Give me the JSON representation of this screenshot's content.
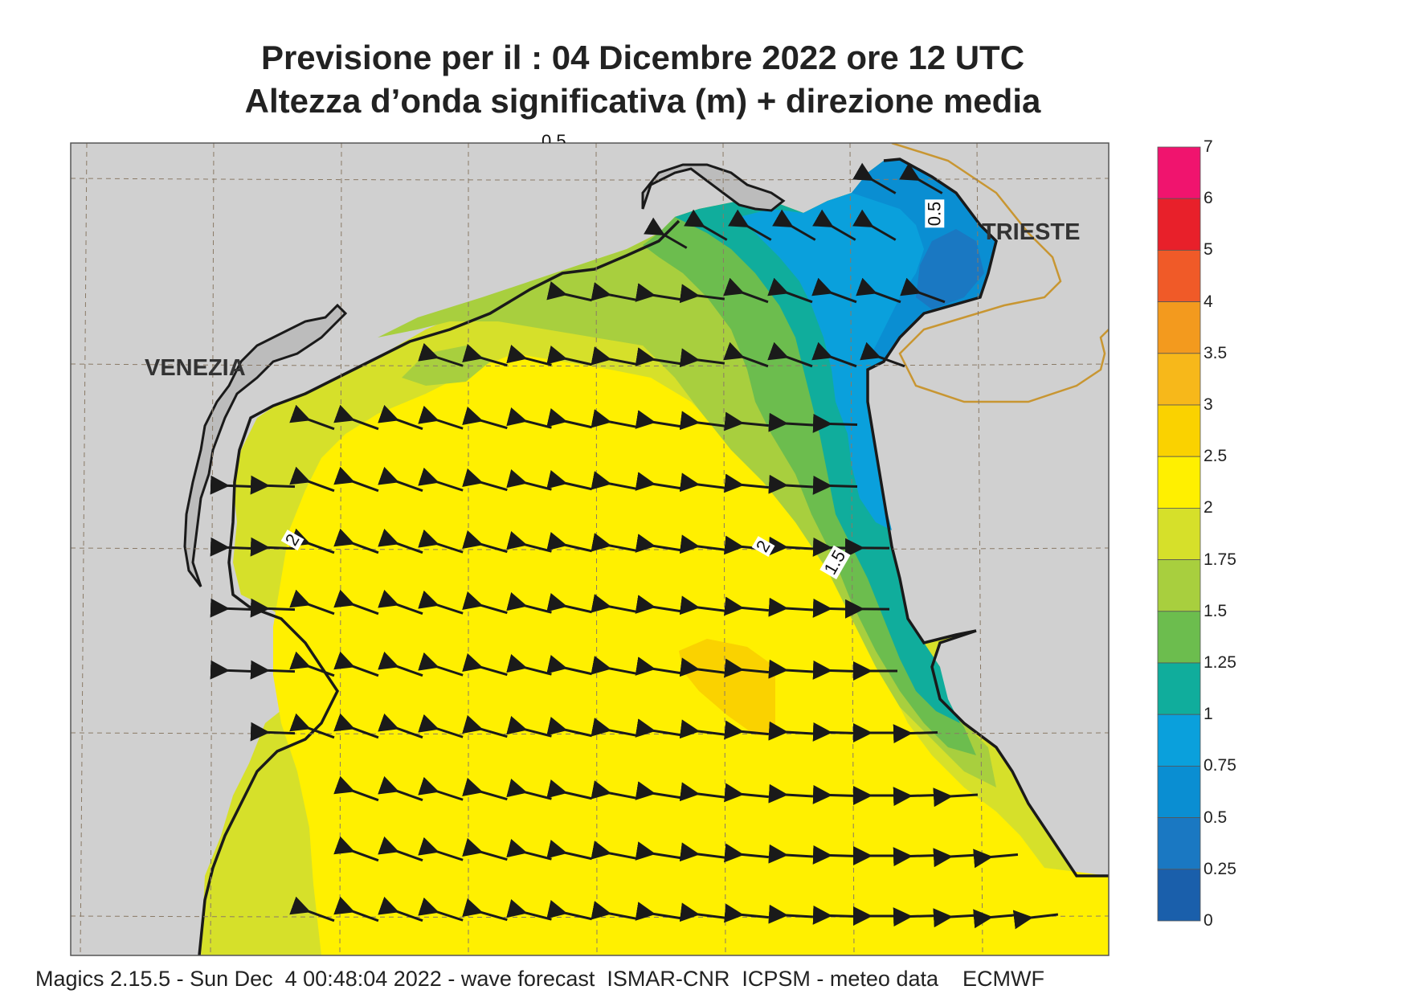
{
  "title": {
    "line1": "Previsione per il  :  04 Dicembre  2022   ore 12 UTC",
    "line2": "Altezza d’onda significativa (m) + direzione media"
  },
  "cities": [
    {
      "name": "VENEZIA"
    },
    {
      "name": "TRIESTE"
    }
  ],
  "contour_labels": [
    "2",
    "2",
    "1.5",
    "0.5",
    "0.5"
  ],
  "colorbar": {
    "labels": [
      "7",
      "6",
      "5",
      "4",
      "3.5",
      "3",
      "2.5",
      "2",
      "1.75",
      "1.5",
      "1.25",
      "1",
      "0.75",
      "0.5",
      "0.25",
      "0"
    ],
    "colors": [
      "#f0146e",
      "#e8202a",
      "#f05a28",
      "#f39a1e",
      "#f7b81a",
      "#fad200",
      "#fff000",
      "#d6e02a",
      "#a8cf3e",
      "#6cbd4e",
      "#10ad9c",
      "#0aa0dc",
      "#0a8ed2",
      "#1a78c2",
      "#1a5fab"
    ]
  },
  "colors": {
    "land": "#d0d0d0",
    "sea_max": "#fff000",
    "sea_low": "#0a8ed2",
    "coast": "#1a1a1a",
    "border": "#c89632",
    "arrow": "#1a1a1a"
  },
  "wave_direction": "arrows pointing north-west",
  "footer": "Magics 2.15.5 - Sun Dec  4 00:48:04 2022 - wave forecast  ISMAR-CNR  ICPSM - meteo data    ECMWF"
}
